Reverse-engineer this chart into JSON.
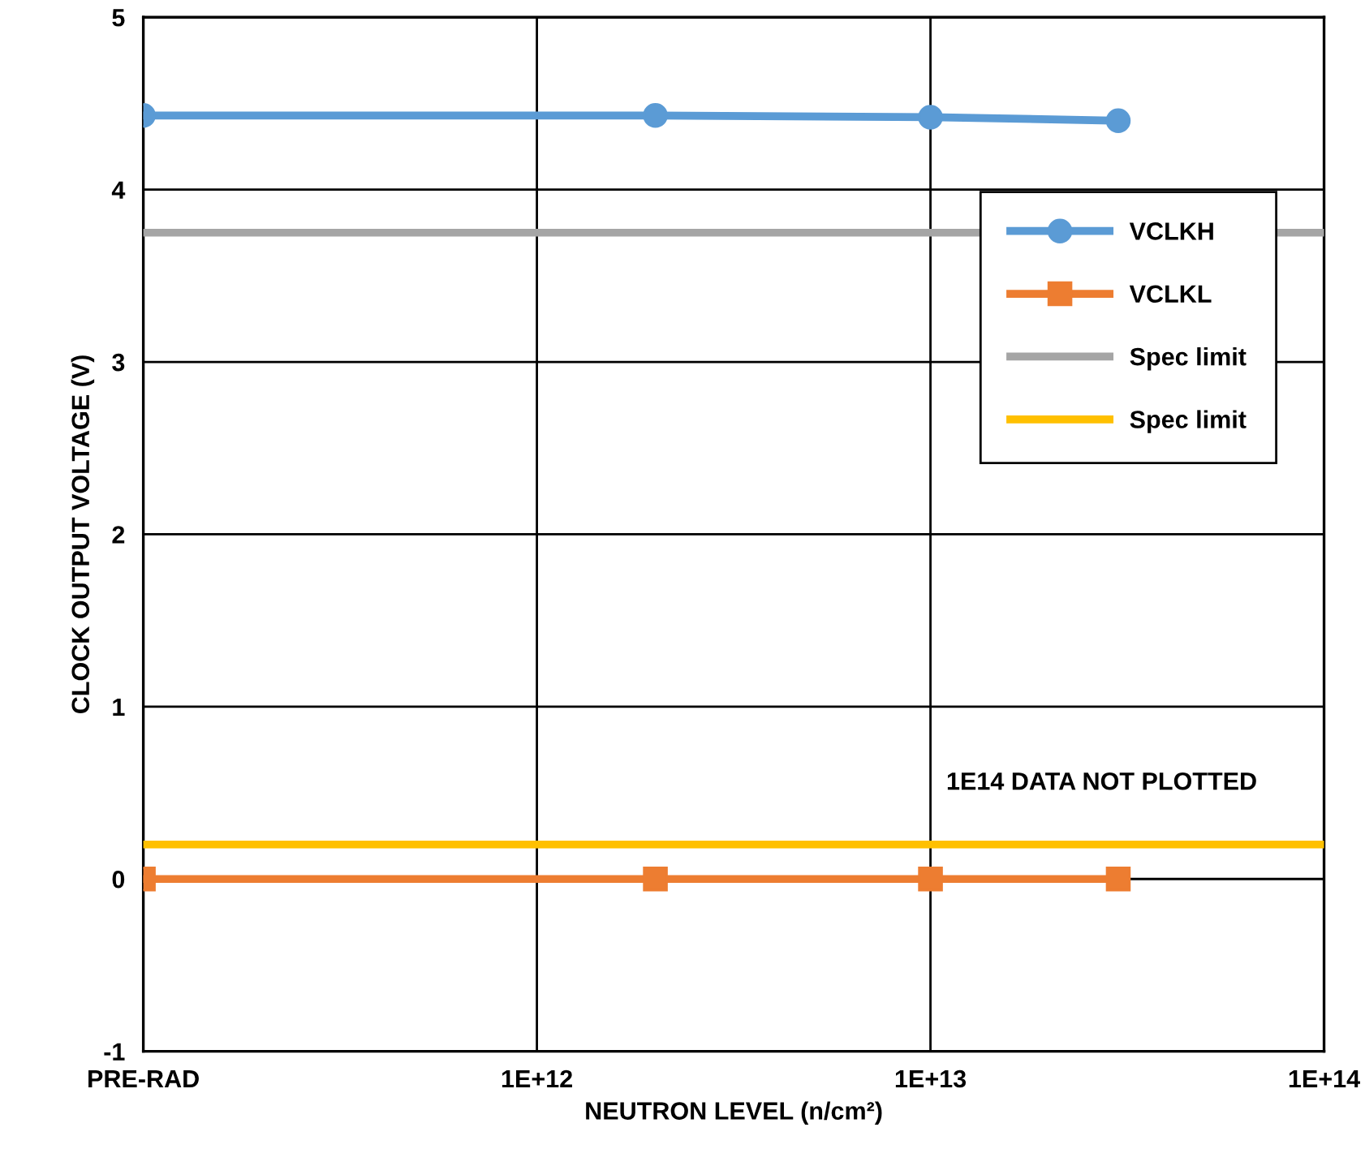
{
  "chart_data": {
    "type": "line",
    "xlabel": "NEUTRON LEVEL (n/cm²)",
    "ylabel": "CLOCK OUTPUT VOLTAGE (V)",
    "log": "x",
    "xlim": [
      100000000000.0,
      100000000000000.0
    ],
    "ylim": [
      -1,
      5
    ],
    "xticks": [
      {
        "value": 100000000000.0,
        "label": "PRE-RAD"
      },
      {
        "value": 1000000000000.0,
        "label": "1E+12"
      },
      {
        "value": 10000000000000.0,
        "label": "1E+13"
      },
      {
        "value": 100000000000000.0,
        "label": "1E+14"
      }
    ],
    "yticks": [
      -1,
      0,
      1,
      2,
      3,
      4,
      5
    ],
    "grid": true,
    "legend": "right",
    "series": [
      {
        "name": "VCLKH",
        "color": "#5b9bd5",
        "marker": "circle",
        "x": [
          100000000000.0,
          2000000000000.0,
          10000000000000.0,
          30000000000000.0
        ],
        "values": [
          4.43,
          4.43,
          4.42,
          4.4
        ]
      },
      {
        "name": "VCLKL",
        "color": "#ed7d31",
        "marker": "square",
        "x": [
          100000000000.0,
          2000000000000.0,
          10000000000000.0,
          30000000000000.0
        ],
        "values": [
          0.0,
          0.0,
          0.0,
          0.0
        ]
      },
      {
        "name": "Spec limit",
        "color": "#a5a5a5",
        "marker": "none",
        "x": [
          100000000000.0,
          100000000000000.0
        ],
        "values": [
          3.75,
          3.75
        ]
      },
      {
        "name": "Spec limit",
        "color": "#ffc000",
        "marker": "none",
        "x": [
          100000000000.0,
          100000000000000.0
        ],
        "values": [
          0.2,
          0.2
        ]
      }
    ],
    "annotations": [
      "1E14 DATA NOT PLOTTED"
    ]
  }
}
